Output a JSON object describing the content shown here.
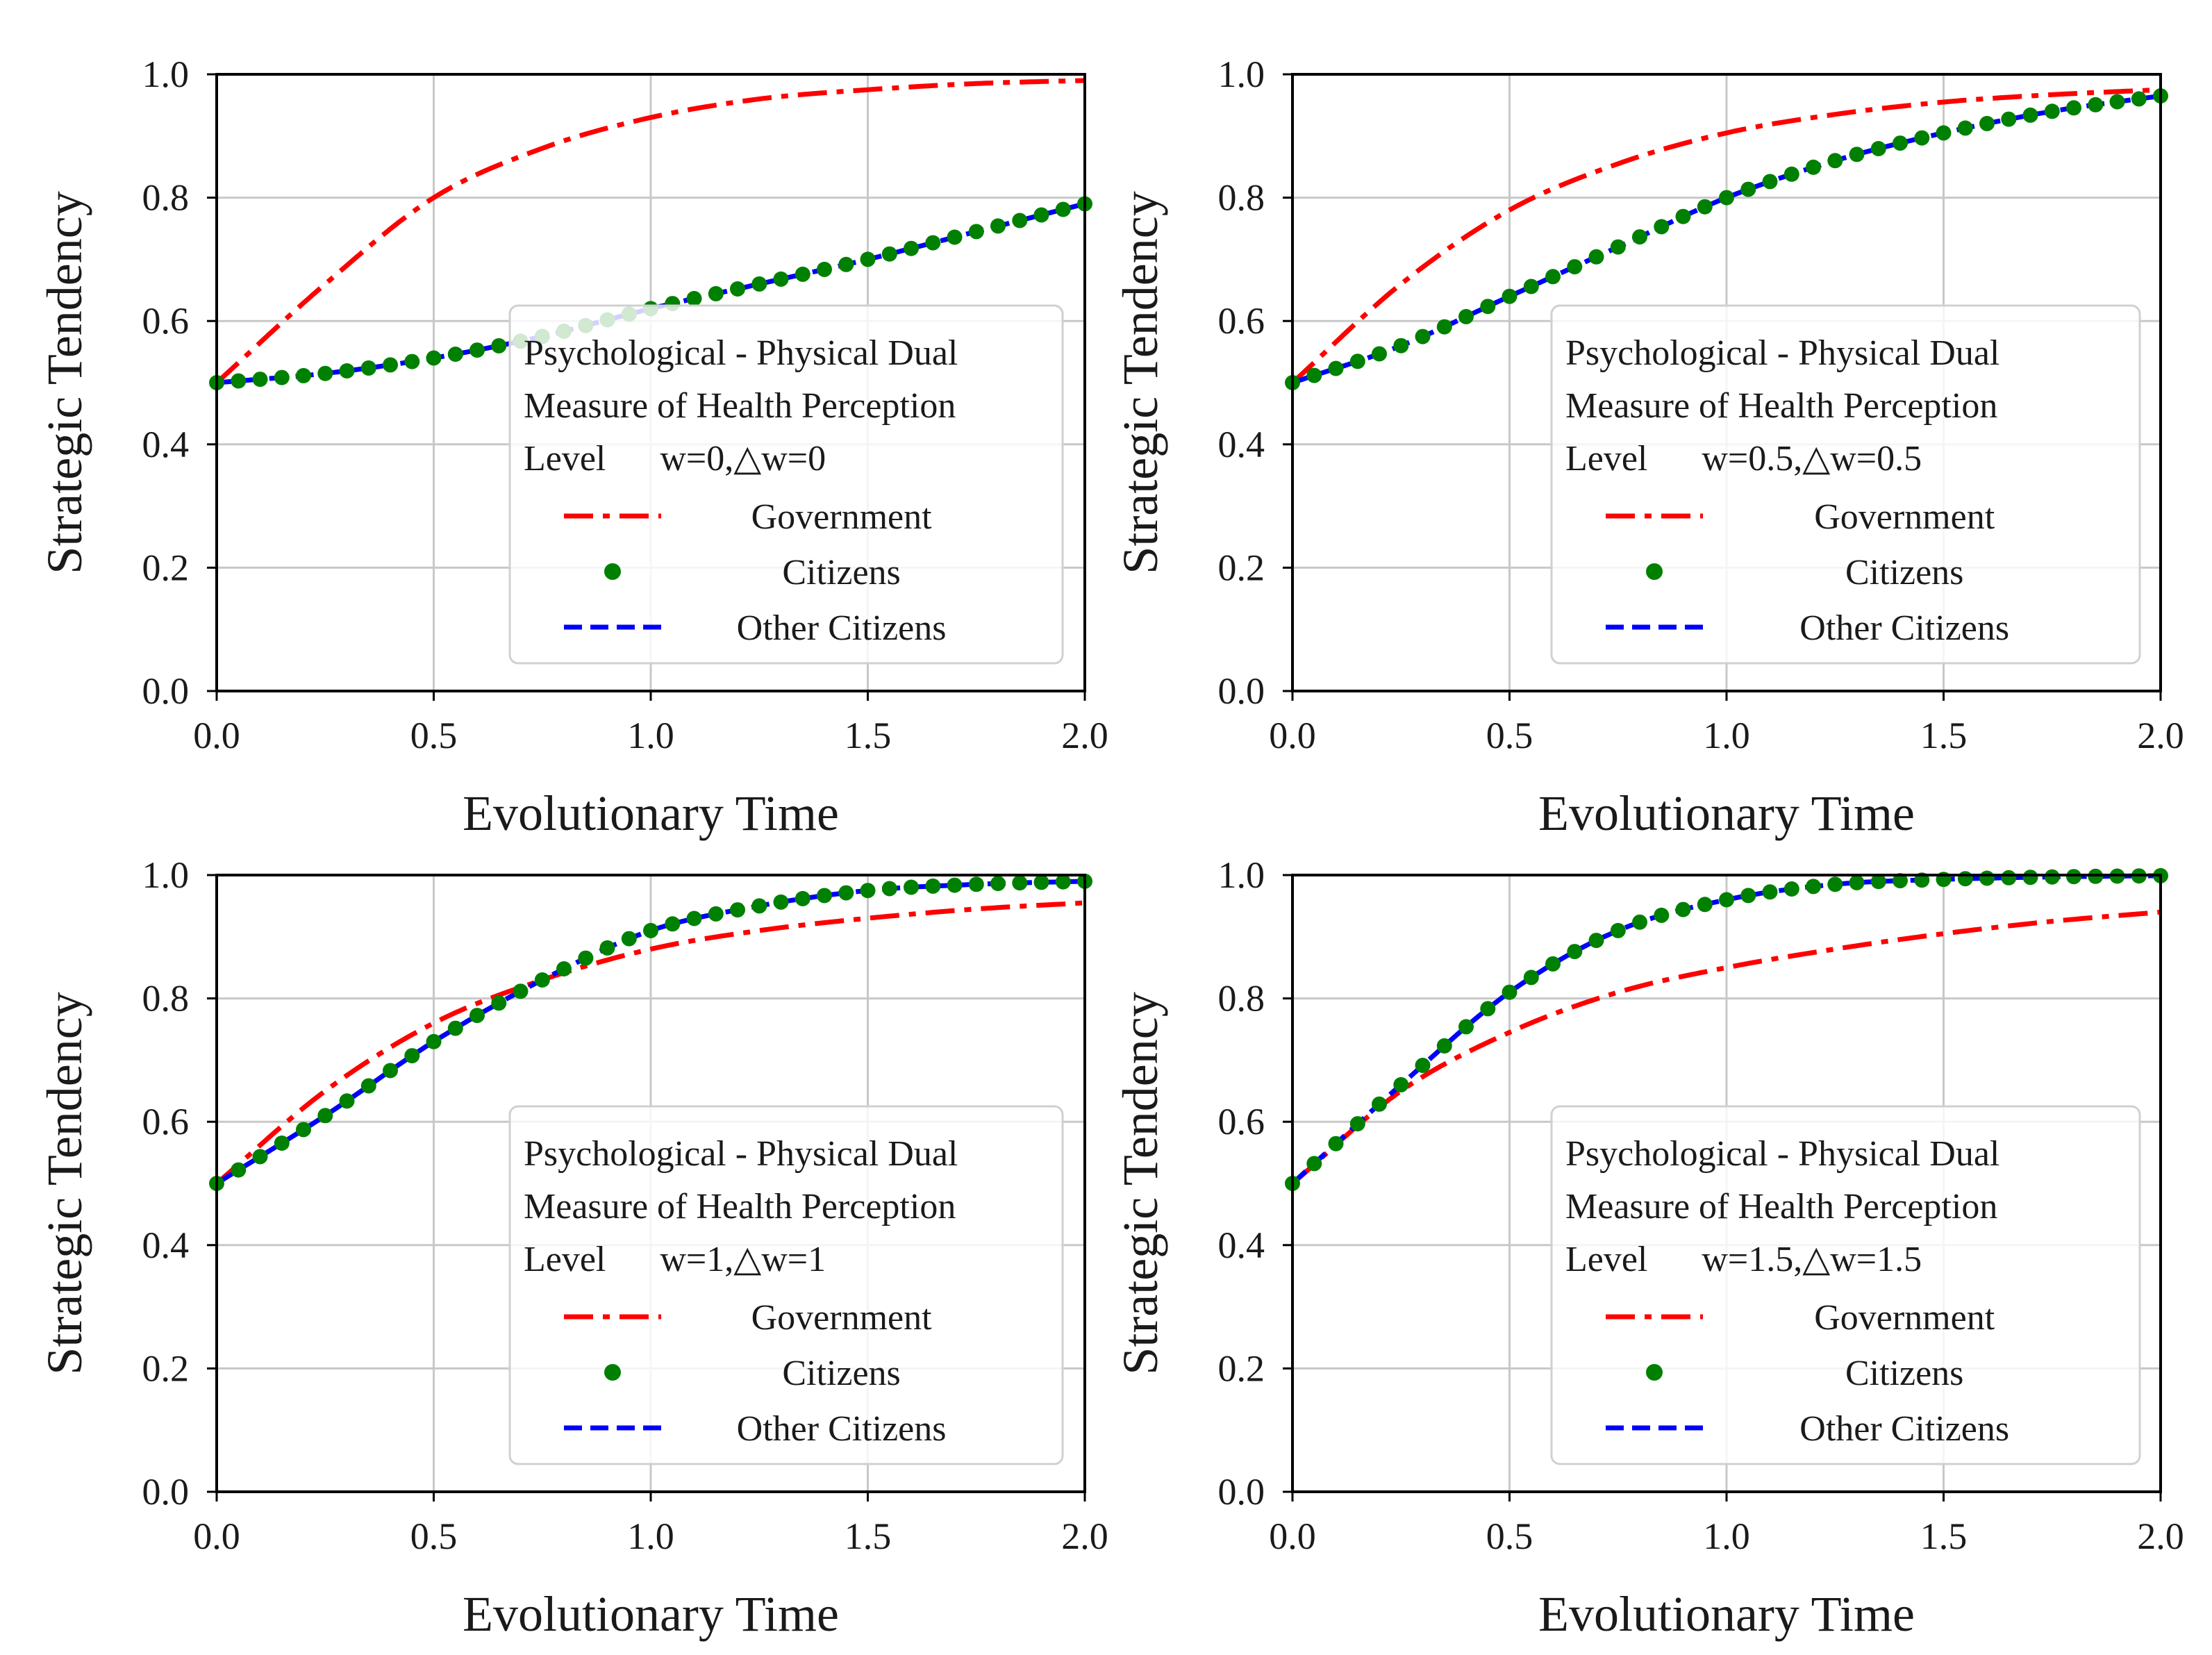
{
  "figure": {
    "background": "#ffffff"
  },
  "style": {
    "government_color": "#ff0000",
    "citizens_color": "#008000",
    "other_citizens_color": "#0000ff",
    "grid_color": "#c8c8c8",
    "axes_color": "#000000"
  },
  "chart_data": [
    {
      "type": "line",
      "panel": "top-left",
      "xlabel": "Evolutionary Time",
      "ylabel": "Strategic Tendency",
      "xlim": [
        0.0,
        2.0
      ],
      "ylim": [
        0.0,
        1.0
      ],
      "x_ticks": [
        "0.0",
        "0.5",
        "1.0",
        "1.5",
        "2.0"
      ],
      "y_ticks": [
        "0.0",
        "0.2",
        "0.4",
        "0.6",
        "0.8",
        "1.0"
      ],
      "grid": true,
      "legend_placement": "center-right",
      "legend_title": [
        "Psychological - Physical Dual",
        "Measure of Health Perception",
        "Level      w=0,△w=0"
      ],
      "x": [
        0.0,
        0.25,
        0.5,
        0.75,
        1.0,
        1.25,
        1.5,
        1.75,
        2.0
      ],
      "series": [
        {
          "name": "Government",
          "style": "dashdot",
          "values": [
            0.5,
            0.66,
            0.8,
            0.88,
            0.93,
            0.96,
            0.975,
            0.985,
            0.99
          ]
        },
        {
          "name": "Citizens",
          "style": "dots",
          "values": [
            0.5,
            0.515,
            0.54,
            0.575,
            0.62,
            0.66,
            0.7,
            0.745,
            0.79
          ]
        },
        {
          "name": "Other Citizens",
          "style": "dashed",
          "values": [
            0.5,
            0.515,
            0.54,
            0.575,
            0.62,
            0.66,
            0.7,
            0.745,
            0.79
          ]
        }
      ]
    },
    {
      "type": "line",
      "panel": "top-right",
      "xlabel": "Evolutionary Time",
      "ylabel": "Strategic Tendency",
      "xlim": [
        0.0,
        2.0
      ],
      "ylim": [
        0.0,
        1.0
      ],
      "x_ticks": [
        "0.0",
        "0.5",
        "1.0",
        "1.5",
        "2.0"
      ],
      "y_ticks": [
        "0.0",
        "0.2",
        "0.4",
        "0.6",
        "0.8",
        "1.0"
      ],
      "grid": true,
      "legend_placement": "center-right",
      "legend_title": [
        "Psychological - Physical Dual",
        "Measure of Health Perception",
        "Level      w=0.5,△w=0.5"
      ],
      "x": [
        0.0,
        0.25,
        0.5,
        0.75,
        1.0,
        1.25,
        1.5,
        1.75,
        2.0
      ],
      "series": [
        {
          "name": "Government",
          "style": "dashdot",
          "values": [
            0.5,
            0.66,
            0.78,
            0.855,
            0.905,
            0.935,
            0.955,
            0.967,
            0.975
          ]
        },
        {
          "name": "Citizens",
          "style": "dots",
          "values": [
            0.5,
            0.56,
            0.64,
            0.72,
            0.8,
            0.86,
            0.905,
            0.94,
            0.965
          ]
        },
        {
          "name": "Other Citizens",
          "style": "dashed",
          "values": [
            0.5,
            0.56,
            0.64,
            0.72,
            0.8,
            0.86,
            0.905,
            0.94,
            0.965
          ]
        }
      ]
    },
    {
      "type": "line",
      "panel": "bottom-left",
      "xlabel": "Evolutionary Time",
      "ylabel": "Strategic Tendency",
      "xlim": [
        0.0,
        2.0
      ],
      "ylim": [
        0.0,
        1.0
      ],
      "x_ticks": [
        "0.0",
        "0.5",
        "1.0",
        "1.5",
        "2.0"
      ],
      "y_ticks": [
        "0.0",
        "0.2",
        "0.4",
        "0.6",
        "0.8",
        "1.0"
      ],
      "grid": true,
      "legend_placement": "center-right",
      "legend_title": [
        "Psychological - Physical Dual",
        "Measure of Health Perception",
        "Level      w=1,△w=1"
      ],
      "x": [
        0.0,
        0.25,
        0.5,
        0.75,
        1.0,
        1.25,
        1.5,
        1.75,
        2.0
      ],
      "series": [
        {
          "name": "Government",
          "style": "dashdot",
          "values": [
            0.5,
            0.65,
            0.76,
            0.83,
            0.88,
            0.91,
            0.93,
            0.945,
            0.955
          ]
        },
        {
          "name": "Citizens",
          "style": "dots",
          "values": [
            0.5,
            0.61,
            0.73,
            0.83,
            0.91,
            0.95,
            0.975,
            0.985,
            0.99
          ]
        },
        {
          "name": "Other Citizens",
          "style": "dashed",
          "values": [
            0.5,
            0.61,
            0.73,
            0.83,
            0.91,
            0.95,
            0.975,
            0.985,
            0.99
          ]
        }
      ]
    },
    {
      "type": "line",
      "panel": "bottom-right",
      "xlabel": "Evolutionary Time",
      "ylabel": "Strategic Tendency",
      "xlim": [
        0.0,
        2.0
      ],
      "ylim": [
        0.0,
        1.0
      ],
      "x_ticks": [
        "0.0",
        "0.5",
        "1.0",
        "1.5",
        "2.0"
      ],
      "y_ticks": [
        "0.0",
        "0.2",
        "0.4",
        "0.6",
        "0.8",
        "1.0"
      ],
      "grid": true,
      "legend_placement": "center-right",
      "legend_title": [
        "Psychological - Physical Dual",
        "Measure of Health Perception",
        "Level      w=1.5,△w=1.5"
      ],
      "x": [
        0.0,
        0.25,
        0.5,
        0.75,
        1.0,
        1.25,
        1.5,
        1.75,
        2.0
      ],
      "series": [
        {
          "name": "Government",
          "style": "dashdot",
          "values": [
            0.5,
            0.65,
            0.745,
            0.81,
            0.85,
            0.88,
            0.905,
            0.925,
            0.94
          ]
        },
        {
          "name": "Citizens",
          "style": "dots",
          "values": [
            0.5,
            0.66,
            0.81,
            0.91,
            0.96,
            0.985,
            0.993,
            0.997,
            0.999
          ]
        },
        {
          "name": "Other Citizens",
          "style": "dashed",
          "values": [
            0.5,
            0.66,
            0.81,
            0.91,
            0.96,
            0.985,
            0.993,
            0.997,
            0.999
          ]
        }
      ]
    }
  ]
}
